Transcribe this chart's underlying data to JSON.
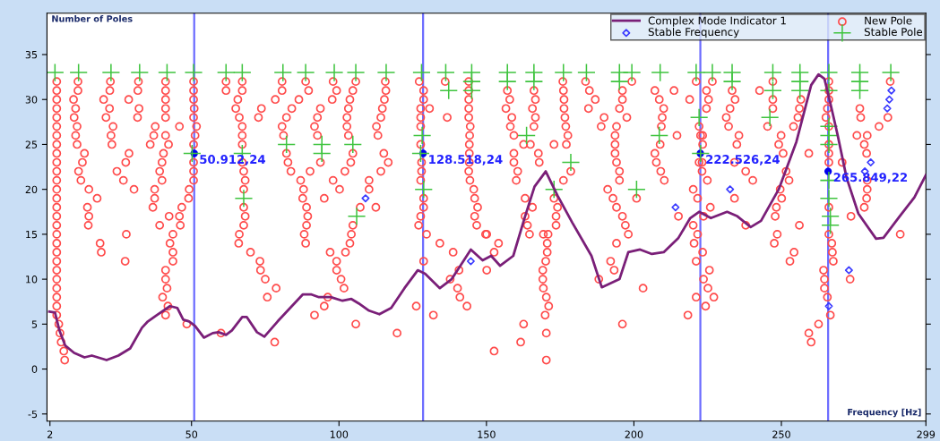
{
  "chart_data": {
    "type": "scatter",
    "xlabel": "Frequency [Hz]",
    "ylabel": "Number of Poles",
    "xlim": [
      1,
      299
    ],
    "ylim": [
      -5.8,
      39.6
    ],
    "xticks": [
      2,
      50,
      100,
      150,
      200,
      250,
      299
    ],
    "yticks": [
      -5,
      0,
      5,
      10,
      15,
      20,
      25,
      30,
      35
    ],
    "legend": "top right",
    "series": [
      {
        "name": "Complex Mode Indicator 1",
        "type": "line",
        "color": "#7a1f78",
        "marker": "none",
        "line_style": "solid",
        "x": [
          1.8,
          3.7,
          5.2,
          7.2,
          10.2,
          13.7,
          16.2,
          21.2,
          25.2,
          29.2,
          33.2,
          35.2,
          38.2,
          42.7,
          45.2,
          47.2,
          49.2,
          51.2,
          54.2,
          57.2,
          59.2,
          61.7,
          63.7,
          67.2,
          68.7,
          72.2,
          74.7,
          79.2,
          87.7,
          90.7,
          93.2,
          97.2,
          101.2,
          104.2,
          106.7,
          110.2,
          113.7,
          117.7,
          122.2,
          126.7,
          129.2,
          134.2,
          138.2,
          144.7,
          148.7,
          151.6,
          154.6,
          159.1,
          163.1,
          166.3,
          170.1,
          174.1,
          179.1,
          185.6,
          189.1,
          195.1,
          198.1,
          202.1,
          206.1,
          210.1,
          215.1,
          219.1,
          222.1,
          226.1,
          231.6,
          235.1,
          239.6,
          243.1,
          249.1,
          255.1,
          260.1,
          262.6,
          264.6,
          266.6,
          269.1,
          272.1,
          276.1,
          282.1,
          284.6,
          290.1,
          295.1,
          299.0
        ],
        "values": [
          6.4,
          6.3,
          4.3,
          2.6,
          1.8,
          1.3,
          1.5,
          1.0,
          1.5,
          2.3,
          4.6,
          5.3,
          6.0,
          7.0,
          6.8,
          5.5,
          5.3,
          4.8,
          3.5,
          4.0,
          4.1,
          3.8,
          4.3,
          5.8,
          5.8,
          4.1,
          3.6,
          5.3,
          8.3,
          8.3,
          8.0,
          8.0,
          7.6,
          7.8,
          7.3,
          6.5,
          6.1,
          6.8,
          9.0,
          11.0,
          10.6,
          9.0,
          10.0,
          13.3,
          12.1,
          12.6,
          11.5,
          12.6,
          17.0,
          20.3,
          22.0,
          19.3,
          16.3,
          12.6,
          9.1,
          10.0,
          13.0,
          13.3,
          12.8,
          13.0,
          14.6,
          16.8,
          17.5,
          16.8,
          17.5,
          17.0,
          15.8,
          16.5,
          20.0,
          25.3,
          31.6,
          32.8,
          32.3,
          29.6,
          26.0,
          21.3,
          17.3,
          14.5,
          14.6,
          17.0,
          19.1,
          21.6
        ]
      },
      {
        "name": "Stable Frequency",
        "type": "scatter",
        "color": "#3a3aff",
        "marker": "diamond",
        "x": [
          109.0,
          144.7,
          214.1,
          232.6,
          287.3,
          286.6,
          285.9,
          280.3,
          278.3,
          272.9,
          266.1
        ],
        "values": [
          19,
          12,
          18,
          20,
          31,
          30,
          29,
          23,
          22,
          11,
          7
        ]
      },
      {
        "name": "New Pole",
        "type": "scatter",
        "color": "#ff4b4b",
        "marker": "circle",
        "x": [
          4.3,
          4.3,
          4.3,
          4.3,
          4.3,
          4.3,
          4.3,
          4.3,
          4.3,
          4.3,
          4.3,
          4.3,
          4.3,
          4.3,
          4.3,
          4.3,
          4.3,
          4.3,
          4.3,
          4.3,
          4.3,
          4.3,
          4.3,
          4.3,
          4.3,
          4.3,
          4.3,
          5.0,
          5.4,
          5.8,
          6.7,
          7.0,
          11.5,
          11.5,
          10.0,
          10.7,
          10.2,
          11.2,
          10.7,
          11.2,
          13.7,
          13.0,
          11.7,
          12.5,
          15.2,
          18.0,
          14.7,
          15.2,
          15.0,
          19.0,
          19.4,
          22.5,
          22.3,
          20.2,
          22.2,
          21.0,
          23.4,
          22.7,
          23.0,
          24.7,
          26.9,
          30.5,
          27.9,
          27.5,
          32.0,
          31.8,
          28.7,
          32.2,
          31.7,
          28.8,
          27.7,
          41.2,
          41.2,
          41.2,
          41.2,
          41.2,
          37.7,
          37.2,
          36.0,
          40.5,
          40.0,
          39.2,
          40.0,
          37.5,
          37.5,
          36.9,
          39.2,
          41.2,
          42.2,
          45.9,
          42.4,
          45.9,
          46.2,
          46.7,
          49.0,
          49.2,
          43.7,
          42.7,
          43.7,
          43.7,
          41.2,
          41.2,
          41.7,
          40.2,
          42.0,
          41.2,
          48.4,
          50.7,
          50.7,
          50.7,
          50.9,
          50.7,
          51.7,
          51.2,
          50.7,
          50.7,
          50.7,
          50.7,
          60.0,
          61.7,
          61.7,
          67.2,
          67.2,
          65.7,
          65.0,
          66.2,
          67.2,
          67.2,
          67.2,
          67.2,
          67.7,
          68.2,
          67.7,
          67.7,
          68.2,
          67.7,
          66.2,
          66.0,
          70.0,
          80.7,
          88.7,
          98.0,
          105.7,
          115.7,
          127.2,
          136.0,
          80.7,
          89.7,
          99.2,
          104.7,
          115.9,
          128.7,
          78.4,
          86.4,
          97.7,
          103.7,
          115.4,
          128.7,
          73.7,
          84.0,
          93.7,
          103.2,
          114.7,
          127.7,
          130.7,
          72.7,
          82.2,
          92.7,
          102.7,
          114.2,
          127.7,
          136.7,
          80.7,
          91.7,
          102.7,
          112.7,
          127.7,
          81.2,
          92.7,
          103.2,
          113.2,
          127.7,
          82.2,
          104.7,
          115.2,
          82.7,
          93.7,
          104.0,
          116.7,
          128.0,
          83.7,
          90.2,
          102.0,
          114.2,
          128.0,
          87.0,
          98.0,
          110.2,
          127.7,
          88.0,
          100.2,
          110.2,
          87.7,
          95.0,
          128.7,
          89.0,
          107.2,
          112.5,
          128.7,
          89.4,
          127.7,
          89.0,
          104.7,
          127.0,
          88.2,
          104.2,
          129.7,
          88.7,
          103.7,
          134.2,
          97.0,
          102.2,
          138.7,
          73.2,
          99.2,
          128.7,
          73.4,
          99.2,
          140.7,
          75.0,
          100.7,
          137.7,
          78.7,
          101.7,
          140.2,
          75.7,
          96.2,
          141.0,
          95.0,
          126.2,
          143.4,
          91.7,
          132.0,
          105.7,
          119.7,
          78.2,
          144.0,
          144.0,
          144.0,
          144.0,
          144.0,
          144.5,
          144.3,
          144.2,
          144.2,
          144.2,
          144.0,
          144.4,
          145.7,
          146.0,
          147.0,
          146.0,
          146.7,
          149.7,
          175.9,
          183.6,
          199.3,
          221.1,
          157.1,
          166.1,
          176.1,
          184.9,
          196.1,
          207.1,
          213.6,
          157.9,
          166.6,
          176.3,
          186.9,
          196.1,
          208.6,
          218.9,
          156.6,
          165.6,
          176.3,
          184.6,
          195.1,
          210.1,
          158.6,
          166.6,
          176.6,
          189.9,
          197.6,
          209.6,
          158.1,
          166.1,
          176.9,
          188.9,
          194.1,
          209.3,
          222.1,
          159.3,
          177.6,
          193.6,
          214.6,
          162.6,
          164.9,
          172.9,
          177.1,
          193.6,
          208.9,
          159.3,
          167.6,
          193.6,
          207.1,
          159.3,
          167.9,
          194.1,
          207.6,
          222.1,
          160.6,
          178.6,
          195.1,
          209.1,
          160.1,
          176.1,
          195.1,
          210.3,
          191.1,
          220.1,
          163.1,
          172.9,
          192.9,
          200.9,
          221.6,
          165.6,
          174.1,
          194.1,
          163.1,
          173.6,
          196.1,
          215.1,
          163.9,
          173.6,
          197.1,
          220.1,
          150.1,
          164.6,
          169.3,
          170.9,
          198.1,
          221.6,
          154.1,
          170.6,
          194.1,
          220.4,
          152.6,
          170.6,
          170.1,
          192.1,
          221.1,
          150.1,
          169.1,
          193.3,
          169.1,
          188.1,
          169.3,
          203.1,
          170.3,
          221.1,
          171.1,
          169.9,
          218.3,
          162.6,
          196.1,
          170.3,
          161.6,
          152.6,
          170.3,
          226.6,
          247.1,
          266.1,
          286.9,
          224.6,
          233.3,
          242.6,
          266.1,
          225.3,
          234.3,
          247.1,
          256.6,
          266.1,
          224.6,
          232.6,
          247.1,
          256.1,
          265.6,
          276.6,
          231.3,
          255.6,
          265.1,
          276.9,
          286.1,
          232.1,
          245.3,
          254.1,
          266.1,
          283.1,
          222.6,
          223.3,
          235.6,
          249.9,
          275.6,
          279.1,
          223.3,
          234.9,
          249.1,
          266.1,
          278.1,
          250.6,
          259.3,
          266.1,
          278.9,
          223.1,
          234.1,
          266.1,
          270.6,
          223.1,
          237.9,
          251.6,
          224.9,
          240.3,
          252.6,
          279.1,
          249.6,
          279.1,
          234.1,
          250.1,
          278.9,
          225.9,
          248.3,
          266.1,
          278.1,
          223.6,
          247.9,
          273.6,
          237.9,
          256.1,
          248.6,
          266.1,
          290.3,
          247.6,
          267.1,
          223.3,
          254.3,
          267.3,
          252.9,
          267.6,
          225.6,
          264.3,
          223.6,
          264.6,
          273.3,
          225.1,
          264.6,
          227.1,
          265.6,
          224.3,
          266.6,
          262.6,
          259.3,
          260.1
        ],
        "values": [
          32,
          31,
          30,
          29,
          28,
          27,
          26,
          25,
          24,
          23,
          22,
          21,
          20,
          19,
          18,
          17,
          16,
          15,
          14,
          13,
          12,
          11,
          10,
          9,
          8,
          7,
          6,
          5,
          4,
          3,
          2,
          1,
          32,
          31,
          30,
          29,
          28,
          27,
          26,
          25,
          24,
          23,
          22,
          21,
          20,
          19,
          18,
          17,
          16,
          14,
          13,
          32,
          31,
          30,
          29,
          28,
          27,
          26,
          25,
          22,
          21,
          20,
          15,
          12,
          32,
          31,
          30,
          29,
          28,
          24,
          23,
          32,
          31,
          30,
          29,
          28,
          27,
          26,
          25,
          24,
          23,
          22,
          21,
          20,
          19,
          18,
          16,
          26,
          25,
          27,
          17,
          17,
          16,
          18,
          19,
          20,
          15,
          14,
          13,
          12,
          11,
          10,
          9,
          8,
          7,
          6,
          5,
          32,
          31,
          30,
          29,
          28,
          27,
          26,
          25,
          23,
          22,
          21,
          4,
          32,
          31,
          32,
          31,
          30,
          29,
          28,
          27,
          26,
          25,
          23,
          22,
          21,
          20,
          18,
          17,
          16,
          15,
          14,
          13,
          32,
          32,
          32,
          32,
          32,
          32,
          32,
          31,
          31,
          31,
          31,
          31,
          31,
          30,
          30,
          30,
          30,
          30,
          30,
          29,
          29,
          29,
          29,
          29,
          29,
          29,
          28,
          28,
          28,
          28,
          28,
          28,
          28,
          27,
          27,
          27,
          27,
          27,
          26,
          26,
          26,
          26,
          25,
          24,
          24,
          24,
          23,
          23,
          23,
          23,
          23,
          22,
          22,
          22,
          22,
          22,
          21,
          21,
          21,
          21,
          20,
          20,
          20,
          19,
          19,
          19,
          18,
          18,
          18,
          18,
          17,
          17,
          16,
          16,
          16,
          15,
          15,
          15,
          14,
          14,
          14,
          13,
          13,
          13,
          12,
          12,
          12,
          11,
          11,
          11,
          10,
          10,
          10,
          9,
          9,
          9,
          8,
          8,
          8,
          7,
          7,
          7,
          6,
          6,
          5,
          4,
          3,
          32,
          31,
          30,
          29,
          28,
          27,
          26,
          25,
          24,
          23,
          22,
          21,
          20,
          19,
          18,
          17,
          16,
          15,
          32,
          32,
          32,
          32,
          31,
          31,
          31,
          31,
          31,
          31,
          31,
          30,
          30,
          30,
          30,
          30,
          30,
          30,
          29,
          29,
          29,
          29,
          29,
          29,
          28,
          28,
          28,
          28,
          28,
          28,
          27,
          27,
          27,
          27,
          27,
          27,
          27,
          26,
          26,
          26,
          26,
          25,
          25,
          25,
          25,
          25,
          25,
          24,
          24,
          24,
          24,
          23,
          23,
          23,
          23,
          23,
          22,
          22,
          22,
          22,
          21,
          21,
          21,
          21,
          20,
          20,
          19,
          19,
          19,
          19,
          19,
          18,
          18,
          18,
          17,
          17,
          17,
          17,
          16,
          16,
          16,
          16,
          15,
          15,
          15,
          15,
          15,
          15,
          14,
          14,
          14,
          14,
          13,
          13,
          12,
          12,
          12,
          11,
          11,
          11,
          10,
          10,
          9,
          9,
          8,
          8,
          7,
          6,
          6,
          5,
          5,
          4,
          3,
          2,
          1,
          32,
          32,
          32,
          32,
          31,
          31,
          31,
          31,
          30,
          30,
          30,
          30,
          30,
          29,
          29,
          29,
          29,
          29,
          29,
          28,
          28,
          28,
          28,
          28,
          27,
          27,
          27,
          27,
          27,
          26,
          26,
          26,
          26,
          26,
          26,
          25,
          25,
          25,
          25,
          25,
          24,
          24,
          24,
          24,
          23,
          23,
          23,
          23,
          22,
          22,
          22,
          21,
          21,
          21,
          21,
          20,
          20,
          19,
          19,
          19,
          18,
          18,
          18,
          18,
          17,
          17,
          17,
          16,
          16,
          15,
          15,
          15,
          14,
          14,
          13,
          13,
          13,
          12,
          12,
          11,
          11,
          10,
          10,
          10,
          9,
          9,
          8,
          8,
          7,
          6,
          5,
          4,
          3
        ]
      },
      {
        "name": "Stable Pole",
        "type": "scatter",
        "color": "#3fc43f",
        "marker": "cross",
        "x": [
          3.7,
          11.7,
          22.7,
          32.4,
          41.7,
          50.7,
          61.7,
          67.2,
          50.2,
          67.2,
          67.7,
          81.0,
          88.7,
          98.4,
          105.7,
          116.0,
          128.0,
          136.2,
          145.0,
          145.0,
          137.2,
          145.0,
          82.2,
          94.2,
          104.7,
          94.2,
          128.2,
          127.7,
          128.7,
          106.0,
          157.1,
          166.1,
          176.1,
          183.9,
          195.1,
          199.3,
          208.9,
          221.1,
          157.1,
          166.1,
          195.1,
          163.6,
          208.6,
          178.6,
          172.9,
          200.9,
          222.1,
          222.6,
          226.6,
          233.3,
          247.1,
          256.3,
          266.1,
          276.6,
          287.1,
          233.3,
          256.3,
          276.6,
          247.1,
          256.3,
          266.1,
          276.6,
          246.1,
          266.1,
          266.1,
          266.1,
          266.1,
          266.1,
          266.6,
          266.6
        ],
        "values": [
          33,
          33,
          33,
          33,
          33,
          33,
          33,
          33,
          24,
          24,
          19,
          33,
          33,
          33,
          33,
          33,
          33,
          33,
          33,
          32,
          31,
          31,
          25,
          25,
          25,
          24,
          26,
          24,
          20,
          17,
          33,
          33,
          33,
          33,
          33,
          33,
          33,
          33,
          32,
          32,
          32,
          26,
          26,
          23,
          20,
          20,
          28,
          24,
          33,
          33,
          33,
          33,
          33,
          33,
          33,
          32,
          32,
          32,
          31,
          31,
          31,
          31,
          28,
          27,
          26,
          25,
          21,
          19,
          17,
          16
        ]
      }
    ],
    "ref_lines": [
      {
        "axis": "x",
        "value": 50.912,
        "color": "#6b6bff"
      },
      {
        "axis": "x",
        "value": 128.518,
        "color": "#6b6bff"
      },
      {
        "axis": "x",
        "value": 222.526,
        "color": "#6b6bff"
      },
      {
        "axis": "x",
        "value": 265.849,
        "color": "#6b6bff"
      }
    ],
    "annotations": [
      {
        "text": "50.912,24",
        "x": 50.912,
        "y": 24
      },
      {
        "text": "128.518,24",
        "x": 128.518,
        "y": 24
      },
      {
        "text": "222.526,24",
        "x": 222.526,
        "y": 24
      },
      {
        "text": "265.849,22",
        "x": 265.849,
        "y": 22
      }
    ]
  }
}
